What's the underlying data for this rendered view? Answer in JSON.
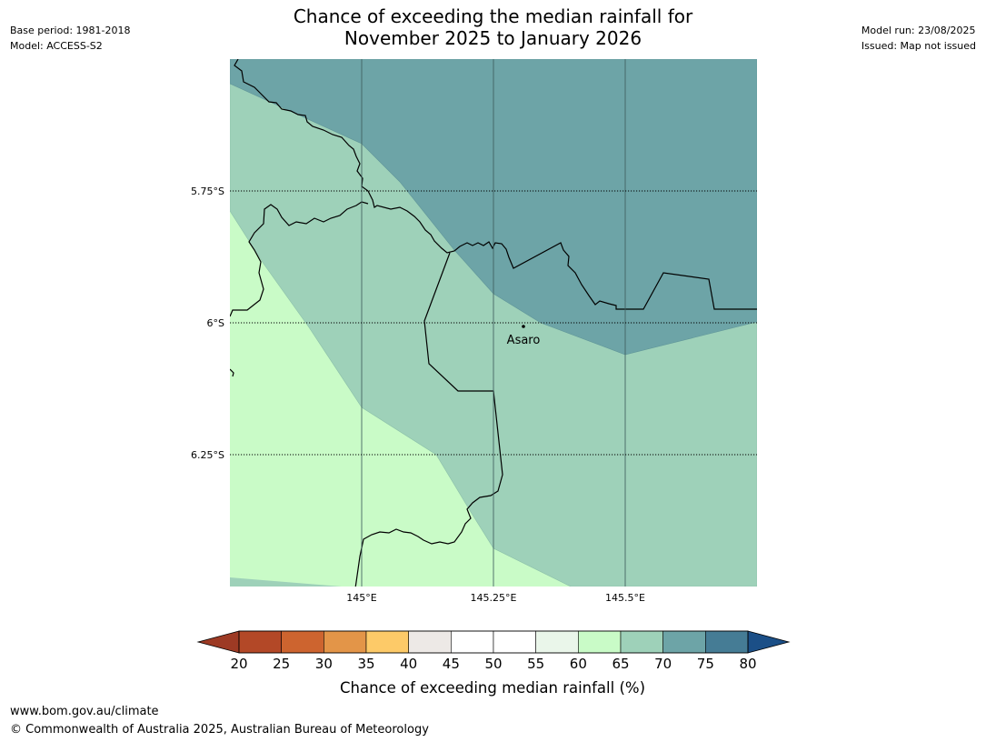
{
  "header": {
    "base_period": "Base period: 1981-2018",
    "model": "Model: ACCESS-S2",
    "model_run": "Model run: 23/08/2025",
    "issued": "Issued: Map not issued",
    "title_line1": "Chance of exceeding the median rainfall for",
    "title_line2": "November 2025 to January 2026"
  },
  "map": {
    "lat_labels": [
      "5.75°S",
      "6°S",
      "6.25°S"
    ],
    "lon_labels": [
      "145°E",
      "145.25°E",
      "145.5°E"
    ],
    "place": "Asaro",
    "zone_colors": {
      "p60_65": "#c9fbc7",
      "p65_70": "#9ed1b9",
      "p70_75": "#6da4a7"
    }
  },
  "colorbar": {
    "ticks": [
      "20",
      "25",
      "30",
      "35",
      "40",
      "45",
      "50",
      "55",
      "60",
      "65",
      "70",
      "75",
      "80"
    ],
    "colors": [
      "#b34827",
      "#cd642f",
      "#e39548",
      "#fdca68",
      "#ede9e6",
      "#ffffff",
      "#ffffff",
      "#eaf6ea",
      "#c9fbc7",
      "#9ed1b9",
      "#6da4a7",
      "#457c95"
    ],
    "under_color": "#9d3a24",
    "over_color": "#1b4f87",
    "label": "Chance of exceeding median rainfall (%)"
  },
  "footer": {
    "url": "www.bom.gov.au/climate",
    "copyright": "© Commonwealth of Australia 2025, Australian Bureau of Meteorology"
  }
}
